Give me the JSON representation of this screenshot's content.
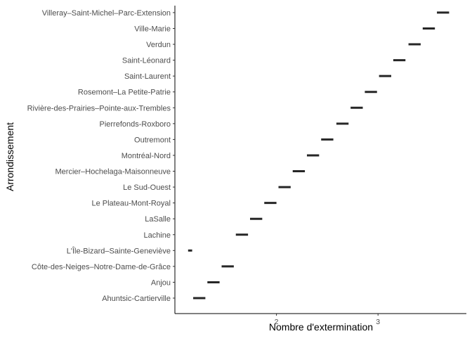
{
  "chart_data": {
    "type": "range-bar",
    "title": "",
    "xlabel": "Nombre d'extermination",
    "ylabel": "Arrondissement",
    "xlim": [
      1.0,
      3.87
    ],
    "x_ticks": [
      2,
      3
    ],
    "grid": false,
    "legend": "none",
    "colors": {
      "bar": "#262626",
      "axis": "#000000",
      "tick_label": "#4d4d4d",
      "background": "#ffffff"
    },
    "categories": [
      "Ahuntsic-Cartierville",
      "Anjou",
      "Côte-des-Neiges–Notre-Dame-de-Grâce",
      "L'Île-Bizard–Sainte-Geneviève",
      "Lachine",
      "LaSalle",
      "Le Plateau-Mont-Royal",
      "Le Sud-Ouest",
      "Mercier–Hochelaga-Maisonneuve",
      "Montréal-Nord",
      "Outremont",
      "Pierrefonds-Roxboro",
      "Rivière-des-Prairies–Pointe-aux-Trembles",
      "Rosemont–La Petite-Patrie",
      "Saint-Laurent",
      "Saint-Léonard",
      "Verdun",
      "Ville-Marie",
      "Villeray–Saint-Michel–Parc-Extension"
    ],
    "series": [
      {
        "start": [
          1.18,
          1.32,
          1.46,
          1.13,
          1.6,
          1.74,
          1.88,
          2.02,
          2.16,
          2.3,
          2.44,
          2.59,
          2.73,
          2.87,
          3.01,
          3.15,
          3.3,
          3.44,
          3.58
        ],
        "end": [
          1.3,
          1.44,
          1.58,
          1.17,
          1.72,
          1.86,
          2.0,
          2.14,
          2.28,
          2.42,
          2.56,
          2.71,
          2.85,
          2.99,
          3.13,
          3.27,
          3.42,
          3.56,
          3.7
        ]
      }
    ]
  }
}
